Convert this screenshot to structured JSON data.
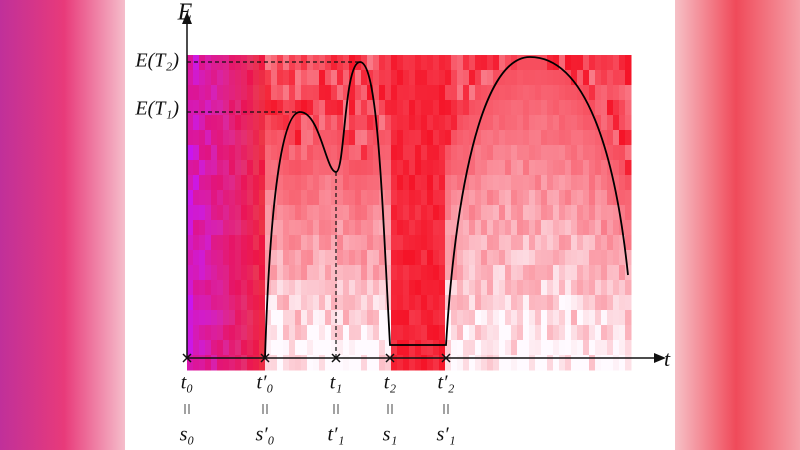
{
  "axes": {
    "y_label": "E",
    "x_label": "t"
  },
  "levels": [
    {
      "label": "E(T₂)"
    },
    {
      "label": "E(T₁)"
    }
  ],
  "ticks": [
    {
      "top": "t₀",
      "bottom": "s₀"
    },
    {
      "top": "t′₀",
      "bottom": "s′₀"
    },
    {
      "top": "t₁",
      "bottom": "t′₁"
    },
    {
      "top": "t₂",
      "bottom": "s₁"
    },
    {
      "top": "t′₂",
      "bottom": "s′₁"
    }
  ]
}
